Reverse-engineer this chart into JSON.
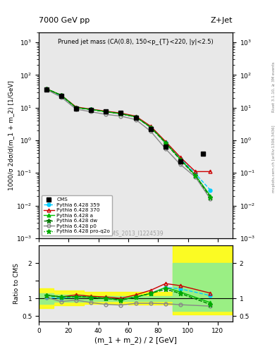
{
  "title_top": "7000 GeV pp",
  "title_right": "Z+Jet",
  "main_title": "Pruned jet mass (CA(0.8), 150<p_{T}<220, |y|<2.5)",
  "watermark": "CMS_2013_I1224539",
  "rivet_label": "Rivet 3.1.10, ≥ 3M events",
  "mcplots_label": "mcplots.cern.ch [arXiv:1306.3436]",
  "xlabel": "(m_1 + m_2) / 2 [GeV]",
  "ylabel_main": "1000/σ 2dσ/d(m_1 + m_2) [1/GeV]",
  "ylabel_ratio": "Ratio to CMS",
  "cms_x": [
    5,
    15,
    25,
    35,
    45,
    55,
    65,
    75,
    85,
    95,
    110
  ],
  "cms_vals": [
    35,
    23,
    9.5,
    8.5,
    7.5,
    6.8,
    5.0,
    2.2,
    0.65,
    0.22,
    0.38
  ],
  "p359_x": [
    5,
    15,
    25,
    35,
    45,
    55,
    65,
    75,
    85,
    95,
    105,
    115
  ],
  "p359_y": [
    36,
    23,
    10,
    8.8,
    7.5,
    6.5,
    5.2,
    2.5,
    0.85,
    0.28,
    0.095,
    0.03
  ],
  "p370_x": [
    5,
    15,
    25,
    35,
    45,
    55,
    65,
    75,
    85,
    95,
    105,
    115
  ],
  "p370_y": [
    38,
    24,
    10.5,
    9.0,
    7.8,
    6.8,
    5.5,
    2.7,
    0.92,
    0.3,
    0.11,
    0.11
  ],
  "pa_x": [
    5,
    15,
    25,
    35,
    45,
    55,
    65,
    75,
    85,
    95,
    105,
    115
  ],
  "pa_y": [
    38,
    24,
    10,
    8.8,
    7.5,
    6.5,
    5.2,
    2.5,
    0.85,
    0.26,
    0.085,
    0.02
  ],
  "pdw_x": [
    5,
    15,
    25,
    35,
    45,
    55,
    65,
    75,
    85,
    95,
    105,
    115
  ],
  "pdw_y": [
    38,
    24,
    10,
    8.8,
    7.5,
    6.5,
    5.2,
    2.5,
    0.82,
    0.25,
    0.082,
    0.018
  ],
  "pp0_x": [
    5,
    15,
    25,
    35,
    45,
    55,
    65,
    75,
    85,
    95,
    105,
    115
  ],
  "pp0_y": [
    36,
    21,
    9.0,
    7.5,
    6.2,
    5.5,
    4.3,
    1.9,
    0.55,
    0.18,
    0.075,
    0.016
  ],
  "pproq2o_x": [
    5,
    15,
    25,
    35,
    45,
    55,
    65,
    75,
    85,
    95,
    105,
    115
  ],
  "pproq2o_y": [
    38,
    24,
    10,
    8.8,
    7.5,
    6.5,
    5.2,
    2.5,
    0.82,
    0.25,
    0.082,
    0.018
  ],
  "ratio_x": [
    5,
    15,
    25,
    35,
    45,
    55,
    65,
    75,
    85,
    95,
    105,
    115
  ],
  "ratio_359": [
    1.03,
    1.0,
    1.05,
    1.03,
    1.0,
    0.96,
    1.04,
    1.14,
    1.31,
    1.27,
    null,
    1.08
  ],
  "ratio_370": [
    1.09,
    1.04,
    1.1,
    1.06,
    1.04,
    1.0,
    1.1,
    1.23,
    1.42,
    1.36,
    null,
    1.15
  ],
  "ratio_a": [
    1.09,
    1.04,
    1.05,
    1.03,
    1.0,
    0.96,
    1.04,
    1.14,
    1.31,
    1.18,
    null,
    0.88
  ],
  "ratio_dw": [
    1.09,
    1.04,
    1.05,
    1.03,
    1.0,
    0.95,
    1.04,
    1.14,
    1.26,
    1.14,
    null,
    0.83
  ],
  "ratio_p0": [
    1.03,
    0.91,
    0.95,
    0.88,
    0.83,
    0.81,
    0.86,
    0.86,
    0.85,
    0.82,
    null,
    0.78
  ],
  "ratio_proq2o": [
    1.09,
    1.04,
    1.05,
    1.03,
    1.0,
    0.95,
    1.04,
    1.14,
    1.26,
    1.14,
    null,
    0.83
  ],
  "color_359": "#00CCFF",
  "color_370": "#CC0000",
  "color_a": "#00BB00",
  "color_dw": "#007700",
  "color_p0": "#888888",
  "color_proq2o": "#00AA00",
  "bg_color": "#ffffff",
  "ylim_main": [
    0.001,
    2000
  ],
  "ylim_ratio": [
    0.35,
    2.5
  ],
  "xlim": [
    0,
    130
  ]
}
